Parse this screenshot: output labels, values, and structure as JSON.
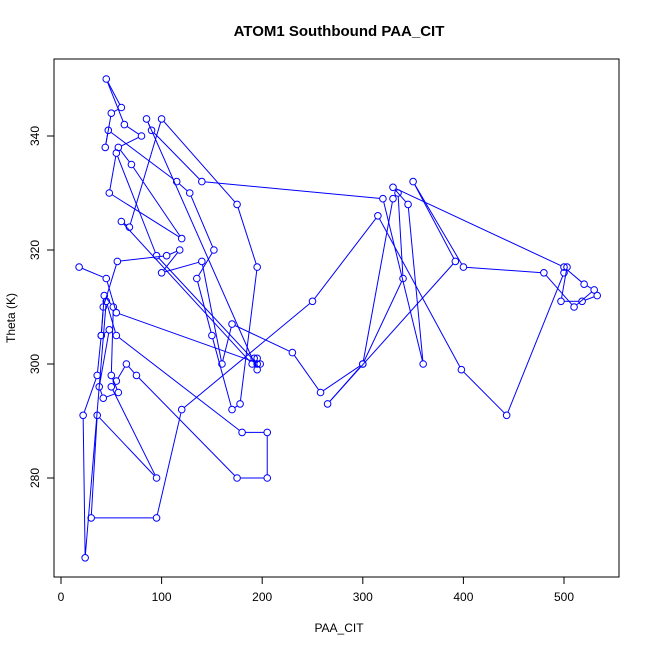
{
  "chart_data": {
    "type": "line",
    "title": "ATOM1 Southbound PAA_CIT",
    "xlabel": "PAA_CIT",
    "ylabel": "Theta (K)",
    "xlim": [
      0,
      550
    ],
    "ylim": [
      262,
      355
    ],
    "xticks": [
      0,
      100,
      200,
      300,
      400,
      500
    ],
    "yticks": [
      280,
      300,
      320,
      340
    ],
    "grid": false,
    "series": [
      {
        "color": "#0000ff",
        "marker": "open-circle",
        "x": [
          18,
          45,
          55,
          198,
          195,
          190,
          60,
          68,
          100,
          175,
          195,
          178,
          170,
          150,
          135,
          152,
          128,
          115,
          47,
          44,
          50,
          60,
          45,
          63,
          80,
          57,
          70,
          120,
          48,
          55,
          95,
          195,
          192,
          195,
          85,
          90,
          140,
          320,
          360,
          345,
          330,
          500,
          520,
          530,
          510,
          480,
          400,
          350,
          392,
          265,
          300,
          330,
          335,
          340,
          300,
          258,
          230,
          170,
          160,
          140,
          100,
          118,
          105,
          56,
          42,
          40,
          48,
          38,
          42,
          57,
          50,
          52,
          43,
          40,
          36,
          22,
          24,
          45,
          55,
          180,
          205,
          205,
          175,
          75,
          65,
          55,
          50,
          95,
          36,
          30,
          95,
          120,
          250,
          315,
          398,
          443,
          500,
          503,
          497,
          518,
          533
        ],
        "y": [
          317,
          315,
          309,
          300,
          301,
          300,
          325,
          324,
          343,
          328,
          317,
          293,
          292,
          305,
          315,
          320,
          330,
          332,
          341,
          338,
          344,
          345,
          350,
          342,
          340,
          338,
          335,
          322,
          330,
          337,
          319,
          300,
          301,
          299,
          343,
          341,
          332,
          329,
          300,
          328,
          331,
          317,
          314,
          313,
          310,
          316,
          317,
          332,
          318,
          293,
          300,
          329,
          330,
          315,
          300,
          295,
          302,
          307,
          300,
          318,
          316,
          320,
          319,
          318,
          310,
          305,
          306,
          296,
          294,
          295,
          298,
          310,
          312,
          305,
          298,
          291,
          266,
          311,
          305,
          288,
          288,
          280,
          280,
          298,
          300,
          297,
          296,
          280,
          291,
          273,
          273,
          292,
          311,
          326,
          299,
          291,
          316,
          317,
          311,
          311,
          312
        ]
      }
    ]
  }
}
